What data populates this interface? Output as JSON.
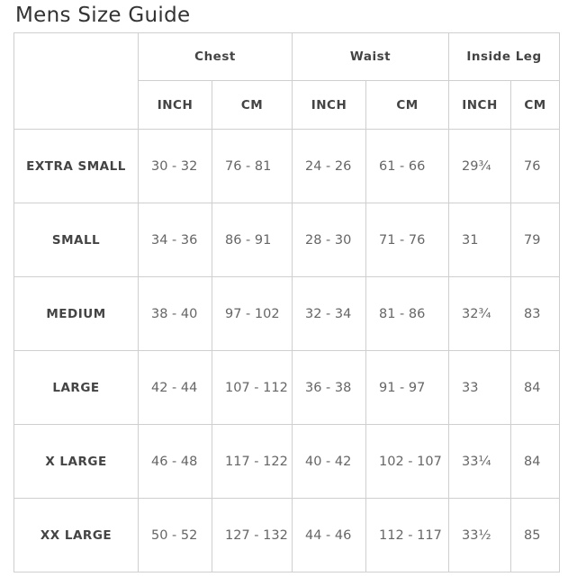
{
  "title": "Mens Size Guide",
  "groups": {
    "chest": "Chest",
    "waist": "Waist",
    "leg": "Inside Leg"
  },
  "units": {
    "inch": "INCH",
    "cm": "CM"
  },
  "rows": [
    {
      "size": "EXTRA SMALL",
      "chest_in": "30 - 32",
      "chest_cm": "76 - 81",
      "waist_in": "24 - 26",
      "waist_cm": "61 - 66",
      "leg_in": "29¾",
      "leg_cm": "76"
    },
    {
      "size": "SMALL",
      "chest_in": "34 - 36",
      "chest_cm": "86 - 91",
      "waist_in": "28 - 30",
      "waist_cm": "71 - 76",
      "leg_in": "31",
      "leg_cm": "79"
    },
    {
      "size": "MEDIUM",
      "chest_in": "38 - 40",
      "chest_cm": "97 - 102",
      "waist_in": "32 - 34",
      "waist_cm": "81 - 86",
      "leg_in": "32¾",
      "leg_cm": "83"
    },
    {
      "size": "LARGE",
      "chest_in": "42 - 44",
      "chest_cm": "107 - 112",
      "waist_in": "36 - 38",
      "waist_cm": "91 - 97",
      "leg_in": "33",
      "leg_cm": "84"
    },
    {
      "size": "X LARGE",
      "chest_in": "46 - 48",
      "chest_cm": "117 - 122",
      "waist_in": "40 - 42",
      "waist_cm": "102 - 107",
      "leg_in": "33¼",
      "leg_cm": "84"
    },
    {
      "size": "XX LARGE",
      "chest_in": "50 - 52",
      "chest_cm": "127 - 132",
      "waist_in": "44 - 46",
      "waist_cm": "112 - 117",
      "leg_in": "33½",
      "leg_cm": "85"
    }
  ]
}
